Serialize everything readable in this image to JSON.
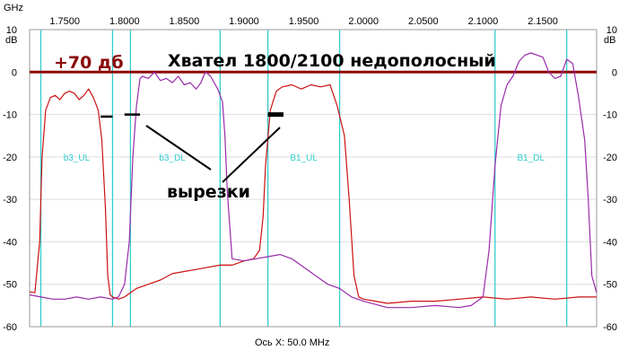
{
  "chart_data": {
    "type": "line",
    "title": "Хвател 1800/2100 недополосный",
    "gain_label": "+70 дб",
    "annotation": "вырезки",
    "xlabel": "Ось X: 50.0 MHz",
    "x_unit": "GHz",
    "y_unit": "dB",
    "xlim": [
      1.7206,
      2.195
    ],
    "ylim": [
      -60,
      10
    ],
    "x_ticks": [
      1.75,
      1.8,
      1.85,
      1.9,
      1.95,
      2.0,
      2.05,
      2.1,
      2.15
    ],
    "x_tick_labels": [
      "1.7500",
      "1.8000",
      "1.8500",
      "1.9000",
      "1.9500",
      "2.0000",
      "2.0500",
      "2.1000",
      "2.1500"
    ],
    "y_ticks": [
      10,
      0,
      -10,
      -20,
      -30,
      -40,
      -50,
      -60
    ],
    "y_tick_labels": [
      "10",
      "0",
      "-10",
      "-20",
      "-30",
      "-40",
      "-50",
      "-60"
    ],
    "vertical_markers": [
      1.73,
      1.79,
      1.805,
      1.88,
      1.92,
      1.98,
      2.11,
      2.17
    ],
    "reference_line": {
      "y": 0,
      "color": "#8b0a0a"
    },
    "band_labels": [
      {
        "text": "b3_UL",
        "x": 1.76,
        "y": -20
      },
      {
        "text": "b3_DL",
        "x": 1.84,
        "y": -20
      },
      {
        "text": "B1_UL",
        "x": 1.95,
        "y": -20
      },
      {
        "text": "B1_DL",
        "x": 2.14,
        "y": -20
      }
    ],
    "notch_marks": [
      {
        "x1": 1.78,
        "x2": 1.79,
        "y": -10.5
      },
      {
        "x1": 1.8,
        "x2": 1.813,
        "y": -10.0
      },
      {
        "x1": 1.92,
        "x2": 1.933,
        "y": -10.0
      }
    ],
    "series": [
      {
        "color": "#cc1111",
        "x": [
          1.7206,
          1.725,
          1.729,
          1.731,
          1.734,
          1.738,
          1.742,
          1.746,
          1.75,
          1.754,
          1.758,
          1.762,
          1.766,
          1.77,
          1.774,
          1.778,
          1.781,
          1.784,
          1.786,
          1.788,
          1.79,
          1.795,
          1.8,
          1.81,
          1.82,
          1.83,
          1.84,
          1.85,
          1.86,
          1.87,
          1.88,
          1.89,
          1.9,
          1.908,
          1.913,
          1.916,
          1.918,
          1.922,
          1.927,
          1.932,
          1.94,
          1.948,
          1.956,
          1.964,
          1.972,
          1.978,
          1.984,
          1.988,
          1.992,
          1.996,
          2.0,
          2.01,
          2.02,
          2.04,
          2.06,
          2.08,
          2.1,
          2.12,
          2.14,
          2.16,
          2.18,
          2.195
        ],
        "y": [
          -51.8,
          -52.0,
          -40.0,
          -20.0,
          -9.0,
          -6.0,
          -5.5,
          -6.5,
          -5.0,
          -4.5,
          -5.0,
          -6.5,
          -5.5,
          -4.0,
          -6.0,
          -9.0,
          -16.0,
          -32.0,
          -48.0,
          -52.5,
          -53.0,
          -53.5,
          -53.0,
          -51.0,
          -50.0,
          -49.0,
          -47.5,
          -47.0,
          -46.5,
          -46.0,
          -45.5,
          -45.5,
          -44.5,
          -44.0,
          -42.0,
          -34.0,
          -22.0,
          -9.0,
          -4.5,
          -3.5,
          -3.0,
          -4.0,
          -3.0,
          -3.5,
          -3.0,
          -8.0,
          -15.0,
          -30.0,
          -48.0,
          -53.0,
          -53.5,
          -54.0,
          -54.5,
          -54.0,
          -54.0,
          -53.5,
          -53.0,
          -53.5,
          -53.0,
          -53.5,
          -53.0,
          -53.0
        ]
      },
      {
        "color": "#9a2aaa",
        "x": [
          1.7206,
          1.73,
          1.74,
          1.75,
          1.76,
          1.77,
          1.78,
          1.79,
          1.795,
          1.8,
          1.804,
          1.807,
          1.81,
          1.813,
          1.815,
          1.82,
          1.825,
          1.83,
          1.835,
          1.84,
          1.845,
          1.85,
          1.855,
          1.86,
          1.864,
          1.866,
          1.868,
          1.872,
          1.874,
          1.878,
          1.882,
          1.884,
          1.886,
          1.89,
          1.9,
          1.91,
          1.92,
          1.93,
          1.94,
          1.95,
          1.96,
          1.97,
          1.98,
          1.99,
          2.0,
          2.02,
          2.04,
          2.06,
          2.08,
          2.09,
          2.1,
          2.105,
          2.11,
          2.115,
          2.12,
          2.125,
          2.13,
          2.135,
          2.14,
          2.15,
          2.155,
          2.16,
          2.165,
          2.17,
          2.175,
          2.18,
          2.185,
          2.188,
          2.191,
          2.195
        ],
        "y": [
          -52.5,
          -53.0,
          -53.5,
          -53.5,
          -53.0,
          -53.5,
          -53.0,
          -53.5,
          -53.0,
          -50.0,
          -40.0,
          -20.0,
          -8.0,
          -1.5,
          -1.0,
          -1.5,
          0.0,
          -2.0,
          -1.5,
          -2.5,
          -1.0,
          -3.0,
          -2.5,
          -4.0,
          -2.5,
          -1.0,
          0.0,
          -1.0,
          -2.0,
          -4.0,
          -7.0,
          -15.0,
          -28.0,
          -44.0,
          -44.5,
          -44.0,
          -43.5,
          -43.0,
          -44.0,
          -46.0,
          -48.0,
          -50.0,
          -51.0,
          -53.0,
          -54.0,
          -55.5,
          -55.5,
          -55.0,
          -55.5,
          -55.0,
          -53.0,
          -42.0,
          -22.0,
          -8.0,
          -3.0,
          -1.0,
          2.5,
          4.0,
          4.5,
          3.5,
          0.0,
          -1.5,
          -1.0,
          3.0,
          2.0,
          -6.0,
          -16.0,
          -30.0,
          -48.0,
          -52.0
        ]
      }
    ],
    "colors": {
      "grid_vertical": "#33cccc",
      "grid_horizontal": "#dddddd",
      "axis": "#9a9a9a"
    }
  }
}
